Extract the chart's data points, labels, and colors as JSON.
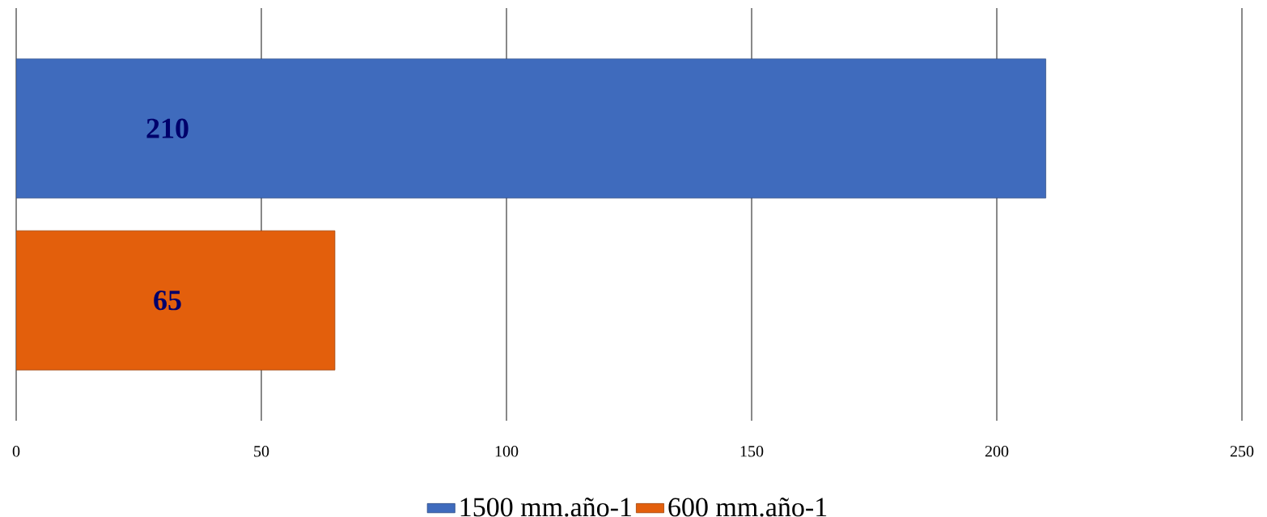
{
  "chart_data": {
    "type": "bar",
    "orientation": "horizontal",
    "categories": [
      null
    ],
    "series": [
      {
        "name": "1500 mm.año-1",
        "color": "#3f6bbd",
        "values": [
          210
        ]
      },
      {
        "name": "600 mm.año-1",
        "color": "#e35f0c",
        "values": [
          65
        ]
      }
    ],
    "xlim": [
      0,
      250
    ],
    "xticks": [
      0,
      50,
      100,
      150,
      200,
      250
    ],
    "grid": "x",
    "legend": "bottom",
    "data_labels": true
  }
}
